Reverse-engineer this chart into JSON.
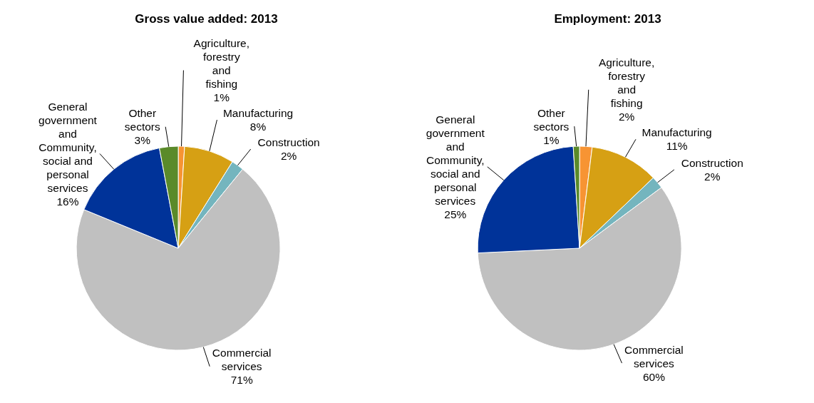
{
  "chart_data": [
    {
      "type": "pie",
      "title": "Gross value added: 2013",
      "categories": [
        "Agriculture, forestry and fishing",
        "Manufacturing",
        "Construction",
        "Commercial services",
        "General government and Community, social and personal services",
        "Other sectors"
      ],
      "values": [
        1,
        8,
        2,
        71,
        16,
        3
      ],
      "value_labels": [
        "1%",
        "8%",
        "2%",
        "71%",
        "16%",
        "3%"
      ],
      "colors": [
        "#f79433",
        "#d6a014",
        "#74b5be",
        "#c0c0c0",
        "#003399",
        "#5a8a2a"
      ]
    },
    {
      "type": "pie",
      "title": "Employment: 2013",
      "categories": [
        "Agriculture, forestry and fishing",
        "Manufacturing",
        "Construction",
        "Commercial services",
        "General government and Community, social and personal services",
        "Other sectors"
      ],
      "values": [
        2,
        11,
        2,
        60,
        25,
        1
      ],
      "value_labels": [
        "2%",
        "11%",
        "2%",
        "60%",
        "25%",
        "1%"
      ],
      "colors": [
        "#f79433",
        "#d6a014",
        "#74b5be",
        "#c0c0c0",
        "#003399",
        "#5a8a2a"
      ]
    }
  ]
}
